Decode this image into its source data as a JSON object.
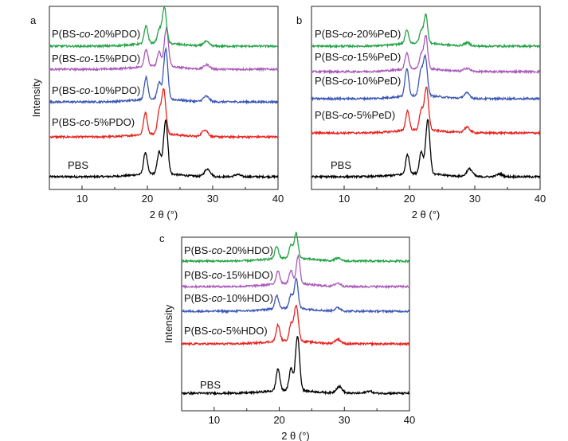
{
  "chart_data": [
    {
      "panel": "a",
      "type": "line",
      "xlabel": "2 θ (°)",
      "ylabel": "Intensity",
      "xlim": [
        5,
        40
      ],
      "xticks": [
        10,
        20,
        30,
        40
      ],
      "yticks_shown": false,
      "series": [
        {
          "name": "PBS",
          "color": "#000000",
          "peaks": [
            {
              "x": 19.7,
              "h": 0.4
            },
            {
              "x": 21.8,
              "h": 0.4
            },
            {
              "x": 22.8,
              "h": 1.0
            },
            {
              "x": 29.2,
              "h": 0.14
            },
            {
              "x": 33.8,
              "h": 0.04
            }
          ]
        },
        {
          "name": "P(BS-co-5%PDO)",
          "color": "#e8221f",
          "peaks": [
            {
              "x": 19.7,
              "h": 0.4
            },
            {
              "x": 21.8,
              "h": 0.38
            },
            {
              "x": 22.5,
              "h": 0.82
            },
            {
              "x": 28.8,
              "h": 0.13
            }
          ]
        },
        {
          "name": "P(BS-co-10%PDO)",
          "color": "#3b56b6",
          "peaks": [
            {
              "x": 19.8,
              "h": 0.4
            },
            {
              "x": 21.8,
              "h": 0.3
            },
            {
              "x": 22.8,
              "h": 0.92
            },
            {
              "x": 29.0,
              "h": 0.1
            }
          ]
        },
        {
          "name": "P(BS-co-15%PDO)",
          "color": "#a959b8",
          "peaks": [
            {
              "x": 19.8,
              "h": 0.32
            },
            {
              "x": 21.8,
              "h": 0.26
            },
            {
              "x": 22.9,
              "h": 0.7
            },
            {
              "x": 29.1,
              "h": 0.08
            }
          ]
        },
        {
          "name": "P(BS-co-20%PDO)",
          "color": "#24a347",
          "peaks": [
            {
              "x": 19.8,
              "h": 0.32
            },
            {
              "x": 21.8,
              "h": 0.24
            },
            {
              "x": 22.6,
              "h": 0.66
            },
            {
              "x": 29.0,
              "h": 0.08
            }
          ]
        }
      ]
    },
    {
      "panel": "b",
      "type": "line",
      "xlabel": "2 θ (°)",
      "ylabel": "",
      "xlim": [
        5,
        40
      ],
      "xticks": [
        10,
        20,
        30,
        40
      ],
      "yticks_shown": false,
      "series": [
        {
          "name": "PBS",
          "color": "#000000",
          "peaks": [
            {
              "x": 19.7,
              "h": 0.36
            },
            {
              "x": 21.8,
              "h": 0.4
            },
            {
              "x": 22.8,
              "h": 1.0
            },
            {
              "x": 29.2,
              "h": 0.14
            },
            {
              "x": 33.8,
              "h": 0.05
            }
          ]
        },
        {
          "name": "P(BS-co-5%PeD)",
          "color": "#e8221f",
          "peaks": [
            {
              "x": 19.7,
              "h": 0.36
            },
            {
              "x": 21.8,
              "h": 0.36
            },
            {
              "x": 22.6,
              "h": 0.78
            },
            {
              "x": 28.8,
              "h": 0.1
            }
          ]
        },
        {
          "name": "P(BS-co-10%PeD)",
          "color": "#3b56b6",
          "peaks": [
            {
              "x": 19.6,
              "h": 0.52
            },
            {
              "x": 21.7,
              "h": 0.4
            },
            {
              "x": 22.4,
              "h": 0.72
            },
            {
              "x": 28.8,
              "h": 0.1
            }
          ]
        },
        {
          "name": "P(BS-co-15%PeD)",
          "color": "#a959b8",
          "peaks": [
            {
              "x": 19.6,
              "h": 0.3
            },
            {
              "x": 21.8,
              "h": 0.26
            },
            {
              "x": 22.5,
              "h": 0.6
            },
            {
              "x": 28.8,
              "h": 0.06
            }
          ]
        },
        {
          "name": "P(BS-co-20%PeD)",
          "color": "#24a347",
          "peaks": [
            {
              "x": 19.6,
              "h": 0.24
            },
            {
              "x": 21.8,
              "h": 0.22
            },
            {
              "x": 22.5,
              "h": 0.52
            },
            {
              "x": 28.8,
              "h": 0.06
            }
          ]
        }
      ]
    },
    {
      "panel": "c",
      "type": "line",
      "xlabel": "2 θ (°)",
      "ylabel": "Intensity",
      "xlim": [
        5,
        40
      ],
      "xticks": [
        10,
        20,
        30,
        40
      ],
      "yticks_shown": false,
      "series": [
        {
          "name": "PBS",
          "color": "#000000",
          "peaks": [
            {
              "x": 19.8,
              "h": 0.4
            },
            {
              "x": 21.8,
              "h": 0.4
            },
            {
              "x": 22.8,
              "h": 1.0
            },
            {
              "x": 29.2,
              "h": 0.12
            },
            {
              "x": 33.8,
              "h": 0.04
            }
          ]
        },
        {
          "name": "P(BS-co-5%HDO)",
          "color": "#e8221f",
          "peaks": [
            {
              "x": 19.8,
              "h": 0.3
            },
            {
              "x": 21.8,
              "h": 0.3
            },
            {
              "x": 22.6,
              "h": 0.66
            },
            {
              "x": 29.0,
              "h": 0.08
            }
          ]
        },
        {
          "name": "P(BS-co-10%HDO)",
          "color": "#3b56b6",
          "peaks": [
            {
              "x": 19.6,
              "h": 0.24
            },
            {
              "x": 21.8,
              "h": 0.24
            },
            {
              "x": 22.6,
              "h": 0.56
            },
            {
              "x": 29.0,
              "h": 0.06
            }
          ]
        },
        {
          "name": "P(BS-co-15%HDO)",
          "color": "#a959b8",
          "peaks": [
            {
              "x": 19.8,
              "h": 0.24
            },
            {
              "x": 21.8,
              "h": 0.24
            },
            {
              "x": 22.9,
              "h": 0.52
            },
            {
              "x": 29.0,
              "h": 0.06
            }
          ]
        },
        {
          "name": "P(BS-co-20%HDO)",
          "color": "#24a347",
          "peaks": [
            {
              "x": 19.6,
              "h": 0.22
            },
            {
              "x": 21.8,
              "h": 0.24
            },
            {
              "x": 22.6,
              "h": 0.46
            },
            {
              "x": 29.0,
              "h": 0.05
            }
          ]
        }
      ]
    }
  ]
}
